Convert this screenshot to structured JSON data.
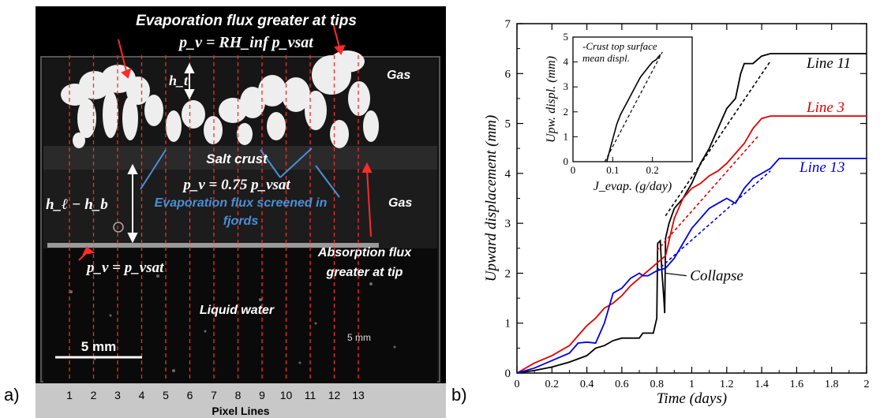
{
  "panel_a": {
    "label": "a)",
    "annotations": {
      "top": "Evaporation flux greater at tips",
      "pv_top": "p_v = RH_inf p_vsat",
      "ht": "h_t",
      "gas_top": "Gas",
      "salt_crust": "Salt crust",
      "pv_mid": "p_v = 0.75 p_vsat",
      "hl_hb": "h_ℓ − h_b",
      "evap_blue_1": "Evaporation flux screened  in",
      "evap_blue_2": "fjords",
      "gas_mid": "Gas",
      "pv_bottom": "p_v = p_vsat",
      "absorption_1": "Absorption flux",
      "absorption_2": "greater at tip",
      "liquid": "Liquid water",
      "scale_small": "5 mm",
      "scale_main": "5 mm"
    },
    "pixel_lines": [
      "1",
      "2",
      "3",
      "4",
      "5",
      "6",
      "7",
      "8",
      "9",
      "10",
      "11",
      "12",
      "13"
    ],
    "pixel_lines_title": "Pixel Lines",
    "colors": {
      "dashed": "#ff2a2a",
      "photo_bg": "#000000",
      "axis_bar": "#c8c8c8",
      "blue_text": "#4a8fd6"
    }
  },
  "panel_b": {
    "label": "b)",
    "colors": {
      "line11": "#000000",
      "line3": "#e00000",
      "line13": "#0000e0"
    },
    "chart_data": [
      {
        "type": "line",
        "xlabel": "Time (days)",
        "ylabel": "Upward displacement (mm)",
        "xlim": [
          0,
          2
        ],
        "ylim": [
          0,
          7
        ],
        "xticks": [
          "0",
          "0.2",
          "0.4",
          "0.6",
          "0.8",
          "1",
          "1.2",
          "1.4",
          "1.6",
          "1.8",
          "2"
        ],
        "yticks": [
          "0",
          "1",
          "2",
          "3",
          "4",
          "5",
          "6",
          "7"
        ],
        "annotation": "Collapse",
        "series": [
          {
            "name": "Line 11",
            "values": [
              [
                0,
                0
              ],
              [
                0.1,
                0.05
              ],
              [
                0.2,
                0.12
              ],
              [
                0.3,
                0.22
              ],
              [
                0.4,
                0.35
              ],
              [
                0.45,
                0.5
              ],
              [
                0.5,
                0.55
              ],
              [
                0.55,
                0.65
              ],
              [
                0.6,
                0.7
              ],
              [
                0.7,
                0.7
              ],
              [
                0.72,
                0.8
              ],
              [
                0.78,
                0.8
              ],
              [
                0.8,
                1.1
              ],
              [
                0.805,
                2.6
              ],
              [
                0.82,
                2.65
              ],
              [
                0.83,
                2.0
              ],
              [
                0.84,
                1.5
              ],
              [
                0.845,
                1.2
              ],
              [
                0.85,
                2.7
              ],
              [
                0.87,
                3.0
              ],
              [
                0.9,
                3.3
              ],
              [
                0.95,
                3.5
              ],
              [
                1.0,
                3.8
              ],
              [
                1.05,
                4.2
              ],
              [
                1.1,
                4.5
              ],
              [
                1.15,
                4.9
              ],
              [
                1.2,
                5.3
              ],
              [
                1.25,
                5.5
              ],
              [
                1.28,
                6.0
              ],
              [
                1.3,
                6.2
              ],
              [
                1.35,
                6.2
              ],
              [
                1.4,
                6.35
              ],
              [
                1.45,
                6.4
              ],
              [
                1.6,
                6.4
              ],
              [
                2.0,
                6.4
              ]
            ],
            "fit": [
              [
                0.85,
                3.15
              ],
              [
                1.45,
                6.25
              ]
            ]
          },
          {
            "name": "Line 3",
            "values": [
              [
                0,
                0
              ],
              [
                0.1,
                0.2
              ],
              [
                0.2,
                0.35
              ],
              [
                0.3,
                0.55
              ],
              [
                0.35,
                0.75
              ],
              [
                0.4,
                0.95
              ],
              [
                0.45,
                1.1
              ],
              [
                0.5,
                1.3
              ],
              [
                0.55,
                1.4
              ],
              [
                0.6,
                1.55
              ],
              [
                0.65,
                1.75
              ],
              [
                0.7,
                1.9
              ],
              [
                0.75,
                2.05
              ],
              [
                0.8,
                2.2
              ],
              [
                0.85,
                2.35
              ],
              [
                0.88,
                2.8
              ],
              [
                0.9,
                3.1
              ],
              [
                0.95,
                3.5
              ],
              [
                1.0,
                3.7
              ],
              [
                1.05,
                3.8
              ],
              [
                1.1,
                3.95
              ],
              [
                1.15,
                4.05
              ],
              [
                1.2,
                4.2
              ],
              [
                1.25,
                4.4
              ],
              [
                1.3,
                4.6
              ],
              [
                1.35,
                4.9
              ],
              [
                1.4,
                5.1
              ],
              [
                1.45,
                5.15
              ],
              [
                2.0,
                5.15
              ]
            ],
            "fit": [
              [
                0.8,
                2.45
              ],
              [
                1.38,
                4.75
              ]
            ]
          },
          {
            "name": "Line 13",
            "values": [
              [
                0,
                0
              ],
              [
                0.1,
                0.1
              ],
              [
                0.2,
                0.25
              ],
              [
                0.3,
                0.4
              ],
              [
                0.35,
                0.6
              ],
              [
                0.4,
                0.62
              ],
              [
                0.45,
                0.6
              ],
              [
                0.5,
                1.0
              ],
              [
                0.55,
                1.6
              ],
              [
                0.6,
                1.7
              ],
              [
                0.65,
                1.9
              ],
              [
                0.7,
                2.0
              ],
              [
                0.72,
                1.95
              ],
              [
                0.75,
                1.95
              ],
              [
                0.8,
                2.05
              ],
              [
                0.85,
                2.1
              ],
              [
                0.9,
                2.3
              ],
              [
                0.95,
                2.6
              ],
              [
                1.0,
                2.9
              ],
              [
                1.05,
                3.1
              ],
              [
                1.1,
                3.3
              ],
              [
                1.15,
                3.4
              ],
              [
                1.2,
                3.5
              ],
              [
                1.25,
                3.4
              ],
              [
                1.3,
                3.7
              ],
              [
                1.35,
                3.9
              ],
              [
                1.4,
                4.0
              ],
              [
                1.45,
                4.1
              ],
              [
                1.5,
                4.3
              ],
              [
                2.0,
                4.3
              ]
            ],
            "fit": [
              [
                0.8,
                2.05
              ],
              [
                1.45,
                4.05
              ]
            ]
          }
        ]
      },
      {
        "type": "line",
        "xlabel": "J_evap. (g/day)",
        "ylabel": "Upw. displ. (mm)",
        "xlim": [
          0,
          0.3
        ],
        "ylim": [
          0,
          5
        ],
        "xticks": [
          "0",
          "0.1",
          "0.2"
        ],
        "yticks": [
          "0",
          "1",
          "2",
          "3",
          "4",
          "5"
        ],
        "legend": [
          "Crust top surface",
          "mean displ."
        ],
        "series": [
          {
            "values": [
              [
                0.085,
                0.0
              ],
              [
                0.09,
                0.3
              ],
              [
                0.095,
                0.6
              ],
              [
                0.1,
                0.9
              ],
              [
                0.105,
                1.2
              ],
              [
                0.11,
                1.5
              ],
              [
                0.115,
                1.7
              ],
              [
                0.12,
                1.9
              ],
              [
                0.13,
                2.2
              ],
              [
                0.14,
                2.5
              ],
              [
                0.15,
                2.8
              ],
              [
                0.16,
                3.1
              ],
              [
                0.17,
                3.4
              ],
              [
                0.18,
                3.6
              ],
              [
                0.19,
                3.8
              ],
              [
                0.2,
                4.0
              ],
              [
                0.21,
                4.1
              ],
              [
                0.22,
                4.3
              ]
            ]
          }
        ]
      }
    ]
  }
}
